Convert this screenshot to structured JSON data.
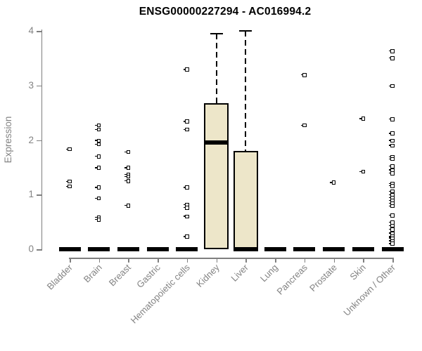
{
  "chart_data": {
    "type": "boxplot",
    "title": "ENSG00000227294 - AC016994.2",
    "ylabel": "Expression",
    "xlabel": "",
    "ylim": [
      0,
      4
    ],
    "yticks": [
      0,
      1,
      2,
      3,
      4
    ],
    "grid": false,
    "legend": null,
    "colors": {
      "box_fill": "#EDE6C9",
      "box_border": "#000000",
      "point_color": "#000000",
      "axis_color": "#7f7f7f",
      "label_color": "#838383",
      "title_color": "#000000"
    },
    "categories": [
      "Bladder",
      "Brain",
      "Breast",
      "Gastric",
      "Hematopoietic cells",
      "Kidney",
      "Liver",
      "Lung",
      "Pancreas",
      "Prostate",
      "Skin",
      "Unknown / Other"
    ],
    "boxes": [
      {
        "category": "Bladder",
        "median": 0,
        "q1": 0,
        "q3": 0,
        "whisker_high": 0,
        "points": [
          1.83,
          1.24,
          1.15
        ]
      },
      {
        "category": "Brain",
        "median": 0,
        "q1": 0,
        "q3": 0,
        "whisker_high": 0,
        "points": [
          2.27,
          2.19,
          1.99,
          1.92,
          1.7,
          1.49,
          1.13,
          0.93,
          0.58,
          0.54
        ]
      },
      {
        "category": "Breast",
        "median": 0,
        "q1": 0,
        "q3": 0,
        "whisker_high": 0,
        "points": [
          1.78,
          1.49,
          1.37,
          1.33,
          1.25,
          0.8
        ]
      },
      {
        "category": "Gastric",
        "median": 0,
        "q1": 0,
        "q3": 0,
        "whisker_high": 0,
        "points": []
      },
      {
        "category": "Hematopoietic cells",
        "median": 0,
        "q1": 0,
        "q3": 0,
        "whisker_high": 0,
        "points": [
          3.29,
          2.34,
          2.19,
          1.13,
          0.81,
          0.76,
          0.6,
          0.23
        ]
      },
      {
        "category": "Kidney",
        "median": 1.95,
        "q1": 0,
        "q3": 2.68,
        "whisker_high": 3.95,
        "points": []
      },
      {
        "category": "Liver",
        "median": 0,
        "q1": 0,
        "q3": 1.8,
        "whisker_high": 4.0,
        "points": []
      },
      {
        "category": "Lung",
        "median": 0,
        "q1": 0,
        "q3": 0,
        "whisker_high": 0,
        "points": []
      },
      {
        "category": "Pancreas",
        "median": 0,
        "q1": 0,
        "q3": 0,
        "whisker_high": 0,
        "points": [
          3.19,
          2.27
        ]
      },
      {
        "category": "Prostate",
        "median": 0,
        "q1": 0,
        "q3": 0,
        "whisker_high": 0,
        "points": [
          1.22
        ]
      },
      {
        "category": "Skin",
        "median": 0,
        "q1": 0,
        "q3": 0,
        "whisker_high": 0,
        "points": [
          2.39,
          1.42
        ]
      },
      {
        "category": "Unknown / Other",
        "median": 0,
        "q1": 0,
        "q3": 0,
        "whisker_high": 0,
        "points": [
          3.63,
          3.5,
          2.99,
          2.38,
          2.12,
          1.99,
          1.9,
          1.69,
          1.65,
          1.52,
          1.45,
          1.39,
          1.2,
          1.16,
          1.06,
          0.99,
          0.94,
          0.89,
          0.84,
          0.79,
          0.62,
          0.49,
          0.43,
          0.36,
          0.29,
          0.23,
          0.2,
          0.15,
          0.1
        ]
      }
    ]
  }
}
